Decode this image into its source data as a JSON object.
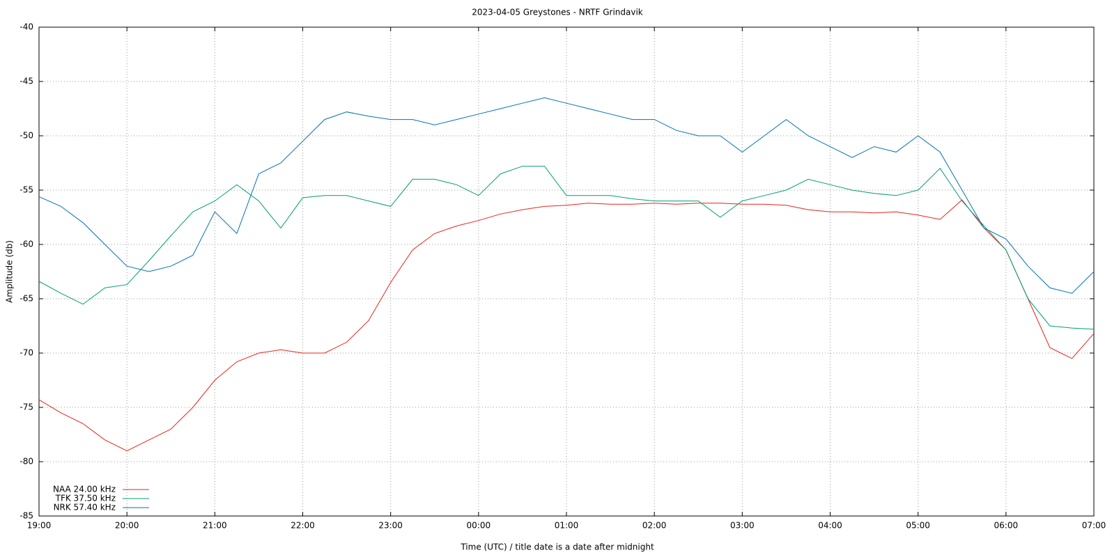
{
  "chart_data": {
    "type": "line",
    "title": "2023-04-05 Greystones - NRTF Grindavik",
    "x_label": "Time (UTC) / title date is a date after midnight",
    "y_label": "Amplitude (db)",
    "x": [
      19,
      19.25,
      19.5,
      19.75,
      20,
      20.25,
      20.5,
      20.75,
      21,
      21.25,
      21.5,
      21.75,
      22,
      22.25,
      22.5,
      22.75,
      23,
      23.25,
      23.5,
      23.75,
      24,
      24.25,
      24.5,
      24.75,
      25,
      25.25,
      25.5,
      25.75,
      26,
      26.25,
      26.5,
      26.75,
      27,
      27.25,
      27.5,
      27.75,
      28,
      28.25,
      28.5,
      28.75,
      29,
      29.25,
      29.5,
      29.75,
      30,
      30.25,
      30.5,
      30.75,
      31
    ],
    "series": [
      {
        "name": "NAA 24.00 kHz",
        "color": "#e8231a",
        "values": [
          -74.3,
          -75.5,
          -76.5,
          -78,
          -79,
          -78,
          -77,
          -75,
          -72.5,
          -70.8,
          -70,
          -69.7,
          -70,
          -70,
          -69,
          -67,
          -63.5,
          -60.5,
          -59,
          -58.3,
          -57.8,
          -57.2,
          -56.8,
          -56.5,
          -56.4,
          -56.2,
          -56.3,
          -56.3,
          -56.2,
          -56.3,
          -56.2,
          -56.2,
          -56.3,
          -56.3,
          -56.4,
          -56.8,
          -57,
          -57,
          -57.1,
          -57,
          -57.3,
          -57.7,
          -55.9,
          -58.5,
          -60.5,
          -65,
          -69.5,
          -70.5,
          -68.2
        ]
      },
      {
        "name": "TFK 37.50 kHz",
        "color": "#009e73",
        "values": [
          -63.4,
          -64.5,
          -65.5,
          -64,
          -63.7,
          -61.5,
          -59.2,
          -57,
          -56,
          -54.5,
          -56,
          -58.5,
          -55.7,
          -55.5,
          -55.5,
          -56,
          -56.5,
          -54,
          -54,
          -54.5,
          -55.5,
          -53.5,
          -52.8,
          -52.8,
          -55.5,
          -55.5,
          -55.5,
          -55.8,
          -56,
          -56,
          -56,
          -57.5,
          -56,
          -55.5,
          -55,
          -54,
          -54.5,
          -55,
          -55.3,
          -55.5,
          -55,
          -53,
          -56,
          -58.3,
          -60.5,
          -65,
          -67.5,
          -67.7,
          -67.8
        ]
      },
      {
        "name": "NRK 57.40 kHz",
        "color": "#0072b2",
        "values": [
          -55.6,
          -56.5,
          -58,
          -60,
          -62,
          -62.5,
          -62,
          -61,
          -57,
          -59,
          -53.5,
          -52.5,
          -50.5,
          -48.5,
          -47.8,
          -48.2,
          -48.5,
          -48.5,
          -49,
          -48.5,
          -48,
          -47.5,
          -47,
          -46.5,
          -47,
          -47.5,
          -48,
          -48.5,
          -48.5,
          -49.5,
          -50,
          -50,
          -51.5,
          -50,
          -48.5,
          -50,
          -51,
          -52,
          -51,
          -51.5,
          -50,
          -51.5,
          -55,
          -58.5,
          -59.5,
          -62,
          -64,
          -64.5,
          -62.5
        ]
      }
    ],
    "xlim": [
      19,
      31
    ],
    "xticks": [
      {
        "value": 19,
        "label": "19:00"
      },
      {
        "value": 20,
        "label": "20:00"
      },
      {
        "value": 21,
        "label": "21:00"
      },
      {
        "value": 22,
        "label": "22:00"
      },
      {
        "value": 23,
        "label": "23:00"
      },
      {
        "value": 24,
        "label": "00:00"
      },
      {
        "value": 25,
        "label": "01:00"
      },
      {
        "value": 26,
        "label": "02:00"
      },
      {
        "value": 27,
        "label": "03:00"
      },
      {
        "value": 28,
        "label": "04:00"
      },
      {
        "value": 29,
        "label": "05:00"
      },
      {
        "value": 30,
        "label": "06:00"
      },
      {
        "value": 31,
        "label": "07:00"
      }
    ],
    "ylim": [
      -85,
      -40
    ],
    "yticks": [
      -85,
      -80,
      -75,
      -70,
      -65,
      -60,
      -55,
      -50,
      -45,
      -40
    ],
    "grid": true,
    "legend": "bottom-left"
  }
}
